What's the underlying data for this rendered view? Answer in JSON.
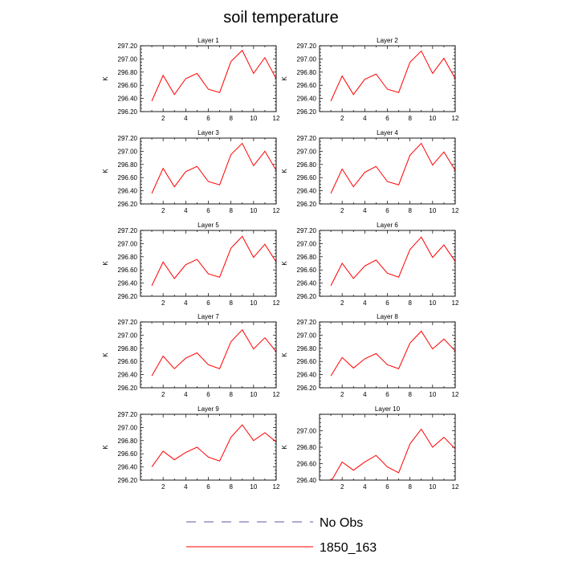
{
  "title": "soil temperature",
  "legend": {
    "placement": "bottom-center",
    "items": [
      {
        "label": "No Obs",
        "style": "dashed",
        "color": "#5a5aa8"
      },
      {
        "label": "1850_163",
        "style": "solid",
        "color": "#ff0000"
      }
    ]
  },
  "chart_data": [
    {
      "type": "line",
      "title": "Layer 1",
      "ylabel": "K",
      "xlim": [
        0,
        12
      ],
      "ylim": [
        296.2,
        297.2
      ],
      "xticks": [
        2,
        4,
        6,
        8,
        10,
        12
      ],
      "yticks": [
        "296.20",
        "296.40",
        "296.60",
        "296.80",
        "297.00",
        "297.20"
      ],
      "series": [
        {
          "name": "1850_163",
          "color": "#ff0000",
          "x": [
            1,
            2,
            3,
            4,
            5,
            6,
            7,
            8,
            9,
            10,
            11,
            12
          ],
          "y": [
            296.36,
            296.75,
            296.46,
            296.7,
            296.78,
            296.54,
            296.49,
            296.96,
            297.13,
            296.78,
            297.02,
            296.7
          ]
        }
      ]
    },
    {
      "type": "line",
      "title": "Layer 2",
      "ylabel": "K",
      "xlim": [
        0,
        12
      ],
      "ylim": [
        296.2,
        297.2
      ],
      "xticks": [
        2,
        4,
        6,
        8,
        10,
        12
      ],
      "yticks": [
        "296.20",
        "296.40",
        "296.60",
        "296.80",
        "297.00",
        "297.20"
      ],
      "series": [
        {
          "name": "1850_163",
          "color": "#ff0000",
          "x": [
            1,
            2,
            3,
            4,
            5,
            6,
            7,
            8,
            9,
            10,
            11,
            12
          ],
          "y": [
            296.36,
            296.74,
            296.46,
            296.69,
            296.77,
            296.54,
            296.49,
            296.95,
            297.12,
            296.78,
            297.01,
            296.7
          ]
        }
      ]
    },
    {
      "type": "line",
      "title": "Layer 3",
      "ylabel": "K",
      "xlim": [
        0,
        12
      ],
      "ylim": [
        296.2,
        297.2
      ],
      "xticks": [
        2,
        4,
        6,
        8,
        10,
        12
      ],
      "yticks": [
        "296.20",
        "296.40",
        "296.60",
        "296.80",
        "297.00",
        "297.20"
      ],
      "series": [
        {
          "name": "1850_163",
          "color": "#ff0000",
          "x": [
            1,
            2,
            3,
            4,
            5,
            6,
            7,
            8,
            9,
            10,
            11,
            12
          ],
          "y": [
            296.36,
            296.74,
            296.46,
            296.69,
            296.77,
            296.54,
            296.49,
            296.95,
            297.12,
            296.78,
            297.0,
            296.71
          ]
        }
      ]
    },
    {
      "type": "line",
      "title": "Layer 4",
      "ylabel": "K",
      "xlim": [
        0,
        12
      ],
      "ylim": [
        296.2,
        297.2
      ],
      "xticks": [
        2,
        4,
        6,
        8,
        10,
        12
      ],
      "yticks": [
        "296.20",
        "296.40",
        "296.60",
        "296.80",
        "297.00",
        "297.20"
      ],
      "series": [
        {
          "name": "1850_163",
          "color": "#ff0000",
          "x": [
            1,
            2,
            3,
            4,
            5,
            6,
            7,
            8,
            9,
            10,
            11,
            12
          ],
          "y": [
            296.36,
            296.73,
            296.46,
            296.68,
            296.77,
            296.54,
            296.49,
            296.94,
            297.12,
            296.79,
            296.99,
            296.71
          ]
        }
      ]
    },
    {
      "type": "line",
      "title": "Layer 5",
      "ylabel": "K",
      "xlim": [
        0,
        12
      ],
      "ylim": [
        296.2,
        297.2
      ],
      "xticks": [
        2,
        4,
        6,
        8,
        10,
        12
      ],
      "yticks": [
        "296.20",
        "296.40",
        "296.60",
        "296.80",
        "297.00",
        "297.20"
      ],
      "series": [
        {
          "name": "1850_163",
          "color": "#ff0000",
          "x": [
            1,
            2,
            3,
            4,
            5,
            6,
            7,
            8,
            9,
            10,
            11,
            12
          ],
          "y": [
            296.36,
            296.72,
            296.47,
            296.68,
            296.76,
            296.54,
            296.49,
            296.93,
            297.11,
            296.79,
            296.99,
            296.72
          ]
        }
      ]
    },
    {
      "type": "line",
      "title": "Layer 6",
      "ylabel": "K",
      "xlim": [
        0,
        12
      ],
      "ylim": [
        296.2,
        297.2
      ],
      "xticks": [
        2,
        4,
        6,
        8,
        10,
        12
      ],
      "yticks": [
        "296.20",
        "296.40",
        "296.60",
        "296.80",
        "297.00",
        "297.20"
      ],
      "series": [
        {
          "name": "1850_163",
          "color": "#ff0000",
          "x": [
            1,
            2,
            3,
            4,
            5,
            6,
            7,
            8,
            9,
            10,
            11,
            12
          ],
          "y": [
            296.36,
            296.7,
            296.47,
            296.66,
            296.75,
            296.55,
            296.49,
            296.91,
            297.1,
            296.79,
            296.98,
            296.73
          ]
        }
      ]
    },
    {
      "type": "line",
      "title": "Layer 7",
      "ylabel": "K",
      "xlim": [
        0,
        12
      ],
      "ylim": [
        296.2,
        297.2
      ],
      "xticks": [
        2,
        4,
        6,
        8,
        10,
        12
      ],
      "yticks": [
        "296.20",
        "296.40",
        "296.60",
        "296.80",
        "297.00",
        "297.20"
      ],
      "series": [
        {
          "name": "1850_163",
          "color": "#ff0000",
          "x": [
            1,
            2,
            3,
            4,
            5,
            6,
            7,
            8,
            9,
            10,
            11,
            12
          ],
          "y": [
            296.38,
            296.68,
            296.49,
            296.65,
            296.73,
            296.55,
            296.49,
            296.9,
            297.08,
            296.79,
            296.96,
            296.75
          ]
        }
      ]
    },
    {
      "type": "line",
      "title": "Layer 8",
      "ylabel": "K",
      "xlim": [
        0,
        12
      ],
      "ylim": [
        296.2,
        297.2
      ],
      "xticks": [
        2,
        4,
        6,
        8,
        10,
        12
      ],
      "yticks": [
        "296.20",
        "296.40",
        "296.60",
        "296.80",
        "297.00",
        "297.20"
      ],
      "series": [
        {
          "name": "1850_163",
          "color": "#ff0000",
          "x": [
            1,
            2,
            3,
            4,
            5,
            6,
            7,
            8,
            9,
            10,
            11,
            12
          ],
          "y": [
            296.38,
            296.66,
            296.5,
            296.64,
            296.72,
            296.55,
            296.49,
            296.88,
            297.06,
            296.79,
            296.94,
            296.76
          ]
        }
      ]
    },
    {
      "type": "line",
      "title": "Layer 9",
      "ylabel": "K",
      "xlim": [
        0,
        12
      ],
      "ylim": [
        296.2,
        297.2
      ],
      "xticks": [
        2,
        4,
        6,
        8,
        10,
        12
      ],
      "yticks": [
        "296.20",
        "296.40",
        "296.60",
        "296.80",
        "297.00",
        "297.20"
      ],
      "series": [
        {
          "name": "1850_163",
          "color": "#ff0000",
          "x": [
            1,
            2,
            3,
            4,
            5,
            6,
            7,
            8,
            9,
            10,
            11,
            12
          ],
          "y": [
            296.4,
            296.64,
            296.51,
            296.62,
            296.7,
            296.55,
            296.49,
            296.85,
            297.04,
            296.8,
            296.92,
            296.78
          ]
        }
      ]
    },
    {
      "type": "line",
      "title": "Layer 10",
      "ylabel": "K",
      "xlim": [
        0,
        12
      ],
      "ylim": [
        296.4,
        297.2
      ],
      "xticks": [
        2,
        4,
        6,
        8,
        10,
        12
      ],
      "yticks": [
        "296.40",
        "296.60",
        "296.80",
        "297.00"
      ],
      "series": [
        {
          "name": "1850_163",
          "color": "#ff0000",
          "x": [
            1,
            2,
            3,
            4,
            5,
            6,
            7,
            8,
            9,
            10,
            11,
            12
          ],
          "y": [
            296.38,
            296.62,
            296.52,
            296.62,
            296.7,
            296.56,
            296.49,
            296.84,
            297.02,
            296.8,
            296.92,
            296.78
          ]
        }
      ]
    }
  ]
}
